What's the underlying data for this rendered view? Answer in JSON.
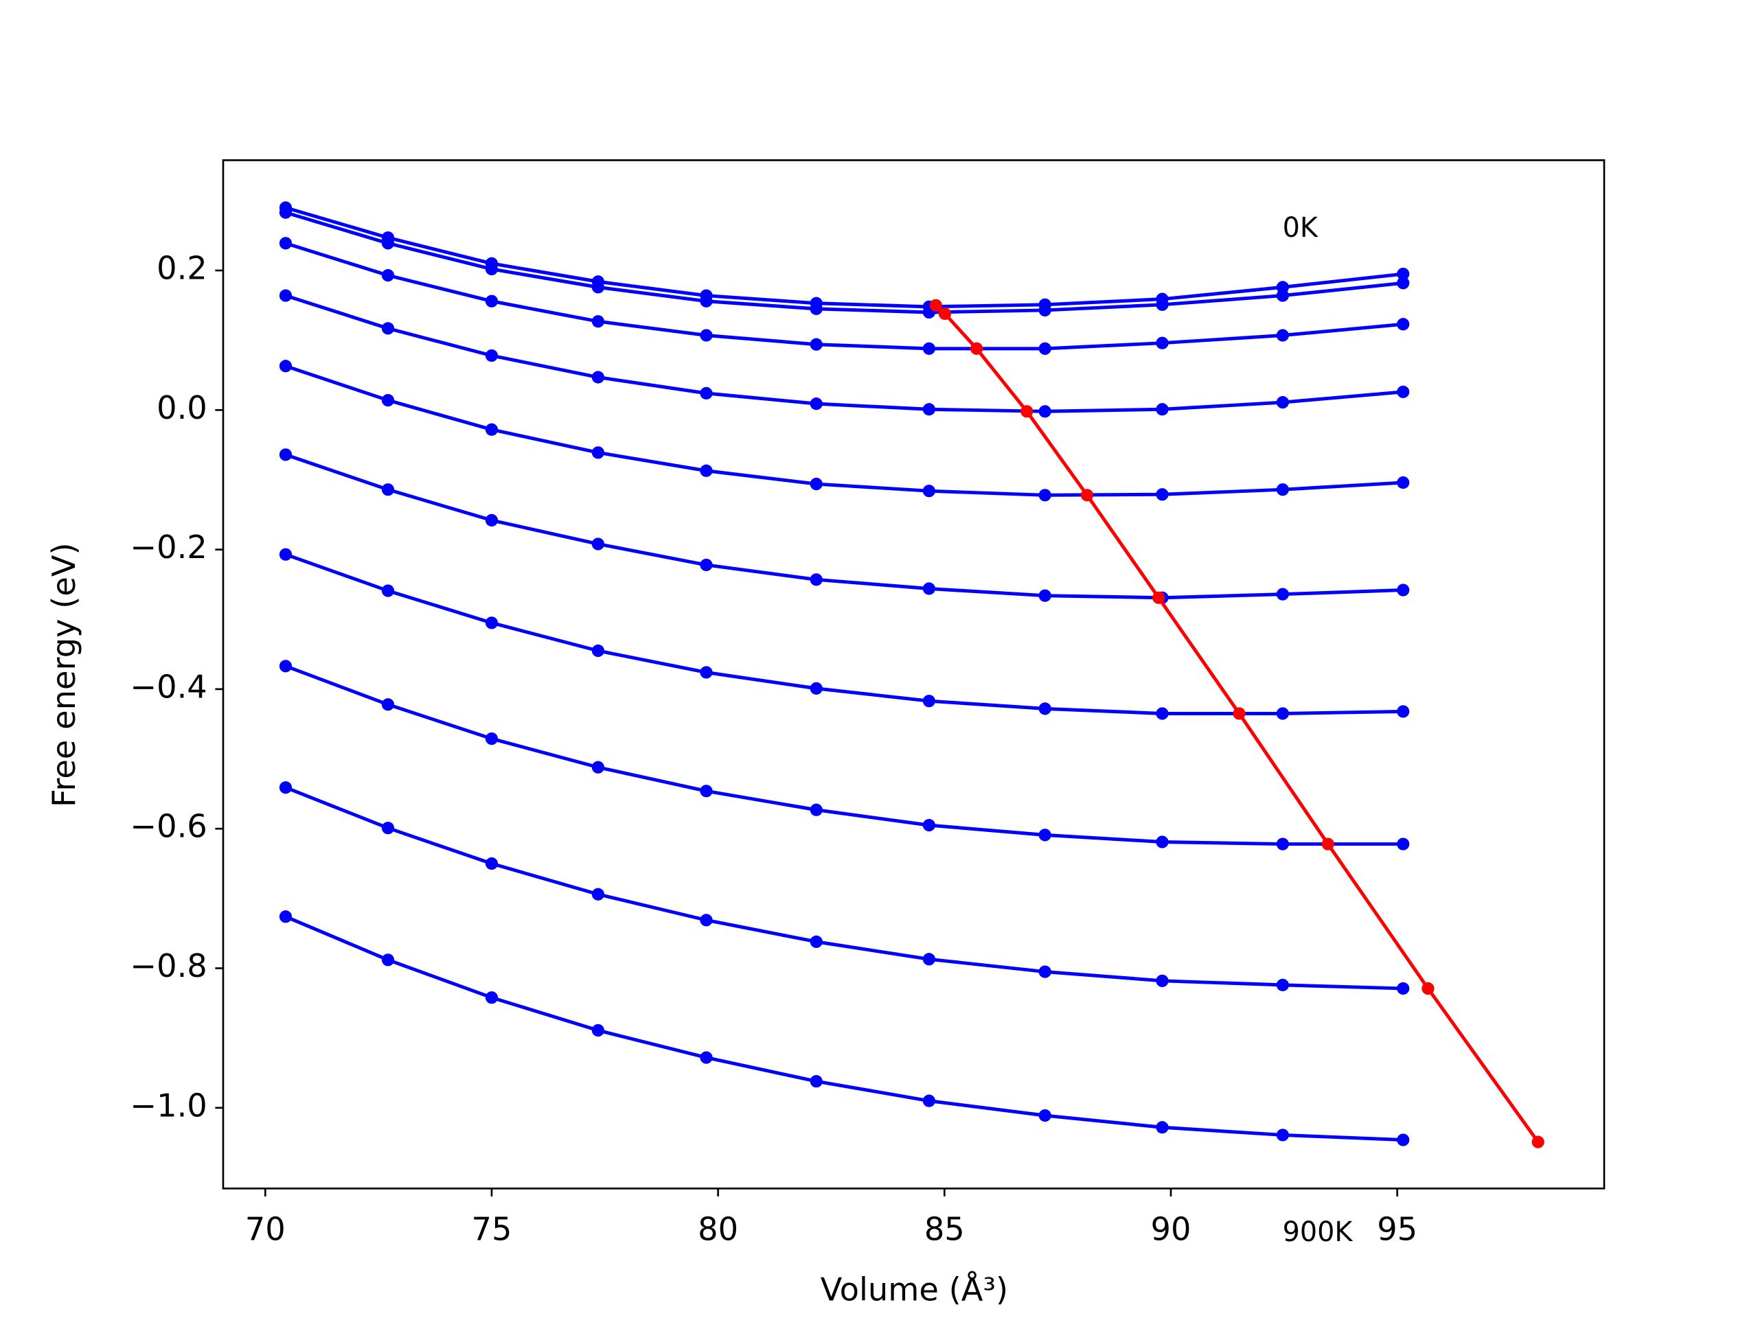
{
  "chart_data": {
    "type": "line",
    "xlabel": "Volume (Å³)",
    "ylabel": "Free energy (eV)",
    "annotations": [
      "0K",
      "900K"
    ],
    "xlim": [
      69.07,
      99.57
    ],
    "ylim": [
      -1.1156,
      0.358
    ],
    "xticks": [
      70,
      75,
      80,
      85,
      90,
      95
    ],
    "yticks": [
      {
        "value": -1.0,
        "label": "−1.0"
      },
      {
        "value": -0.8,
        "label": "−0.8"
      },
      {
        "value": -0.6,
        "label": "−0.6"
      },
      {
        "value": -0.4,
        "label": "−0.4"
      },
      {
        "value": -0.2,
        "label": "−0.2"
      },
      {
        "value": 0.0,
        "label": "0.0"
      },
      0.2
    ],
    "series": [
      {
        "color": "#0000ff",
        "x": [
          70.45,
          72.71,
          75.0,
          77.35,
          79.74,
          82.17,
          84.66,
          87.22,
          89.81,
          92.47,
          95.13
        ],
        "values": [
          0.29,
          0.247,
          0.21,
          0.184,
          0.164,
          0.153,
          0.148,
          0.151,
          0.159,
          0.176,
          0.195
        ]
      },
      {
        "color": "#0000ff",
        "x": [
          70.45,
          72.71,
          75.0,
          77.35,
          79.74,
          82.17,
          84.66,
          87.22,
          89.81,
          92.47,
          95.13
        ],
        "values": [
          0.283,
          0.239,
          0.202,
          0.176,
          0.156,
          0.145,
          0.14,
          0.143,
          0.151,
          0.164,
          0.182
        ]
      },
      {
        "color": "#0000ff",
        "x": [
          70.45,
          72.71,
          75.0,
          77.35,
          79.74,
          82.17,
          84.66,
          87.22,
          89.81,
          92.47,
          95.13
        ],
        "values": [
          0.239,
          0.193,
          0.156,
          0.127,
          0.107,
          0.094,
          0.088,
          0.088,
          0.096,
          0.107,
          0.123
        ]
      },
      {
        "color": "#0000ff",
        "x": [
          70.45,
          72.71,
          75.0,
          77.35,
          79.74,
          82.17,
          84.66,
          87.22,
          89.81,
          92.47,
          95.13
        ],
        "values": [
          0.164,
          0.117,
          0.078,
          0.047,
          0.024,
          0.009,
          0.001,
          -0.002,
          0.001,
          0.011,
          0.026
        ]
      },
      {
        "color": "#0000ff",
        "x": [
          70.45,
          72.71,
          75.0,
          77.35,
          79.74,
          82.17,
          84.66,
          87.22,
          89.81,
          92.47,
          95.13
        ],
        "values": [
          0.063,
          0.014,
          -0.028,
          -0.061,
          -0.087,
          -0.106,
          -0.116,
          -0.122,
          -0.121,
          -0.114,
          -0.104
        ]
      },
      {
        "color": "#0000ff",
        "x": [
          70.45,
          72.71,
          75.0,
          77.35,
          79.74,
          82.17,
          84.66,
          87.22,
          89.81,
          92.47,
          95.13
        ],
        "values": [
          -0.064,
          -0.114,
          -0.158,
          -0.192,
          -0.222,
          -0.243,
          -0.256,
          -0.266,
          -0.269,
          -0.264,
          -0.258
        ]
      },
      {
        "color": "#0000ff",
        "x": [
          70.45,
          72.71,
          75.0,
          77.35,
          79.74,
          82.17,
          84.66,
          87.22,
          89.81,
          92.47,
          95.13
        ],
        "values": [
          -0.207,
          -0.259,
          -0.305,
          -0.345,
          -0.376,
          -0.399,
          -0.417,
          -0.428,
          -0.435,
          -0.435,
          -0.432
        ]
      },
      {
        "color": "#0000ff",
        "x": [
          70.45,
          72.71,
          75.0,
          77.35,
          79.74,
          82.17,
          84.66,
          87.22,
          89.81,
          92.47,
          95.13
        ],
        "values": [
          -0.367,
          -0.422,
          -0.471,
          -0.512,
          -0.546,
          -0.573,
          -0.595,
          -0.609,
          -0.619,
          -0.622,
          -0.622
        ]
      },
      {
        "color": "#0000ff",
        "x": [
          70.45,
          72.71,
          75.0,
          77.35,
          79.74,
          82.17,
          84.66,
          87.22,
          89.81,
          92.47,
          95.13
        ],
        "values": [
          -0.541,
          -0.599,
          -0.65,
          -0.694,
          -0.731,
          -0.762,
          -0.787,
          -0.805,
          -0.818,
          -0.824,
          -0.829
        ]
      },
      {
        "color": "#0000ff",
        "x": [
          70.45,
          72.71,
          75.0,
          77.35,
          79.74,
          82.17,
          84.66,
          87.22,
          89.81,
          92.47,
          95.13
        ],
        "values": [
          -0.726,
          -0.788,
          -0.842,
          -0.889,
          -0.928,
          -0.962,
          -0.99,
          -1.011,
          -1.028,
          -1.039,
          -1.046
        ]
      },
      {
        "color": "#ff0000",
        "x": [
          84.81,
          85.01,
          85.71,
          86.82,
          88.15,
          89.73,
          91.51,
          93.47,
          95.68,
          98.11
        ],
        "values": [
          0.15,
          0.138,
          0.088,
          -0.002,
          -0.122,
          -0.269,
          -0.435,
          -0.622,
          -0.829,
          -1.049
        ]
      }
    ]
  }
}
